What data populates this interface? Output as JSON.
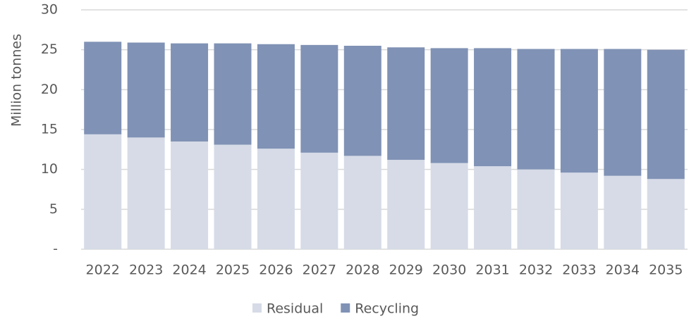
{
  "chart_data": {
    "type": "stacked_bar",
    "y_label": "Million tonnes",
    "categories": [
      "2022",
      "2023",
      "2024",
      "2025",
      "2026",
      "2027",
      "2028",
      "2029",
      "2030",
      "2031",
      "2032",
      "2033",
      "2034",
      "2035"
    ],
    "series": [
      {
        "name": "Residual",
        "color": "#d6dbe7",
        "values": [
          14.4,
          14.0,
          13.5,
          13.1,
          12.6,
          12.1,
          11.7,
          11.2,
          10.8,
          10.4,
          10.0,
          9.6,
          9.2,
          8.8
        ]
      },
      {
        "name": "Recycling",
        "color": "#8092b5",
        "values": [
          11.6,
          11.9,
          12.3,
          12.7,
          13.1,
          13.5,
          13.8,
          14.1,
          14.4,
          14.8,
          15.1,
          15.5,
          15.9,
          16.2
        ]
      }
    ],
    "ylim": [
      0,
      30
    ],
    "yticks": [
      {
        "value": 0,
        "label": "-"
      },
      5,
      10,
      15,
      20,
      25,
      30
    ],
    "grid": true,
    "legend": "bottom"
  }
}
